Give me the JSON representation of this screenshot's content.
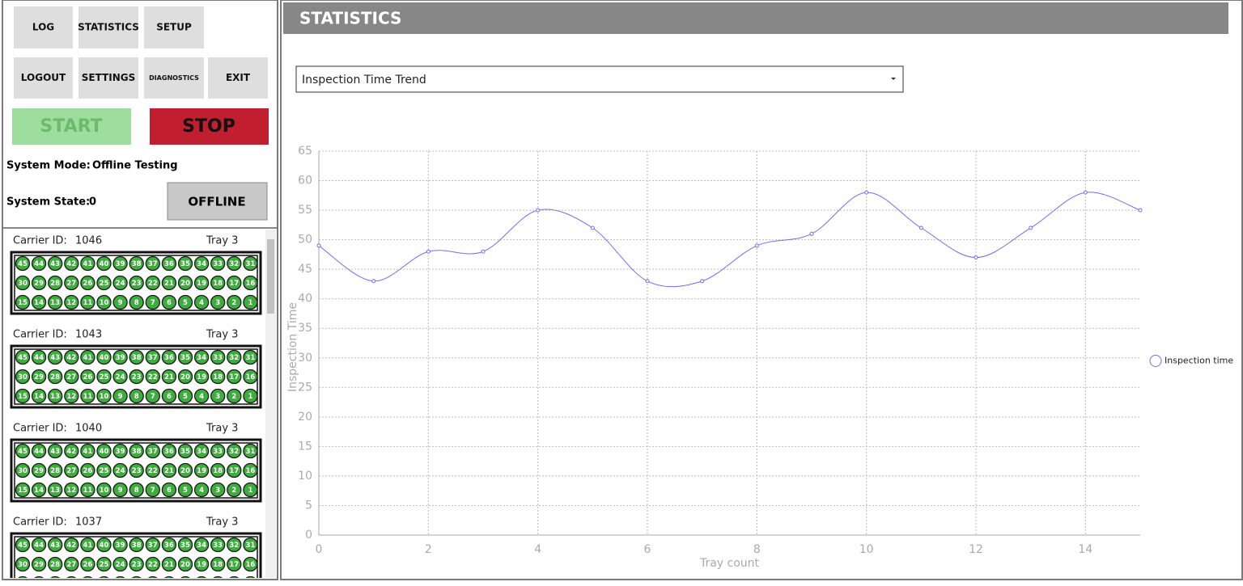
{
  "menu": {
    "buttons": [
      "LOG",
      "STATISTICS",
      "SETUP",
      "LOGOUT",
      "SETTINGS",
      "DIAGNOSTICS",
      "EXIT"
    ],
    "start": "START",
    "stop": "STOP"
  },
  "status": {
    "mode_label": "System Mode:",
    "mode": "Offline Testing",
    "state_label": "System State:",
    "state": 0,
    "offline": "OFFLINE"
  },
  "tray_wells": [
    [
      45,
      44,
      43,
      42,
      41,
      40,
      39,
      38,
      37,
      36,
      35,
      34,
      33,
      32,
      31
    ],
    [
      30,
      29,
      28,
      27,
      26,
      25,
      24,
      23,
      22,
      21,
      20,
      19,
      18,
      17,
      16
    ],
    [
      15,
      14,
      13,
      12,
      11,
      10,
      9,
      8,
      7,
      6,
      5,
      4,
      3,
      2,
      1
    ]
  ],
  "carriers": [
    {
      "label": "Carrier ID:",
      "id": 1046,
      "tray": "Tray 3"
    },
    {
      "label": "Carrier ID:",
      "id": 1043,
      "tray": "Tray 3"
    },
    {
      "label": "Carrier ID:",
      "id": 1040,
      "tray": "Tray 3"
    },
    {
      "label": "Carrier ID:",
      "id": 1037,
      "tray": "Tray 3"
    }
  ],
  "header": {
    "title": "STATISTICS"
  },
  "dropdown": {
    "selected": "Inspection Time Trend"
  },
  "chart_data": {
    "type": "line",
    "x_label": "Tray count",
    "y_label": "Inspection Time",
    "x": [
      0,
      1,
      2,
      3,
      4,
      5,
      6,
      7,
      8,
      9,
      10,
      11,
      12,
      13,
      14,
      15
    ],
    "series": [
      {
        "name": "Inspection time",
        "color": "#6f6ff2",
        "values": [
          49,
          43,
          48,
          48,
          55,
          52,
          43,
          43,
          49,
          51,
          58,
          52,
          47,
          52,
          58,
          55
        ]
      }
    ],
    "xlim": [
      0,
      15
    ],
    "xticks": [
      0,
      2,
      4,
      6,
      8,
      10,
      12,
      14
    ],
    "ylim": [
      0,
      65
    ],
    "yticks": [
      0,
      5,
      10,
      15,
      20,
      25,
      30,
      35,
      40,
      45,
      50,
      55,
      60,
      65
    ],
    "grid": true,
    "smooth": true,
    "legend": "right"
  }
}
